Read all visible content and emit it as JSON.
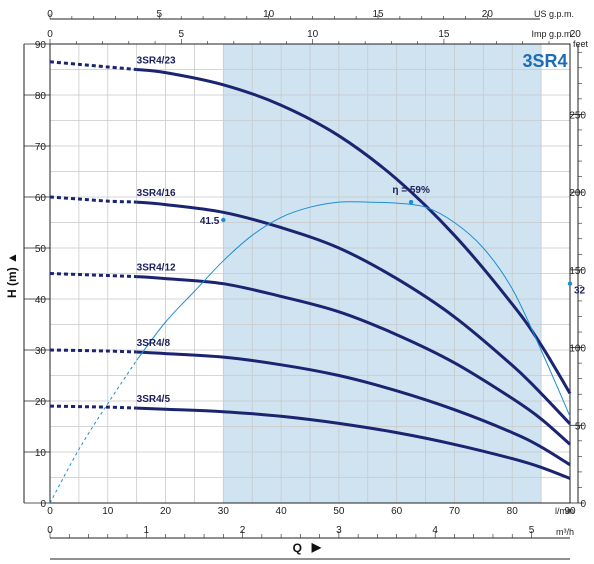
{
  "chart_data": {
    "type": "line",
    "title": "3SR4",
    "colors": {
      "head_curve": "#1b2470",
      "efficiency_curve": "#1c8fd0",
      "operating_band": "#cfe3f1",
      "title": "#1c6db5",
      "grid": "#c9c9c9"
    },
    "axes": {
      "y_left": {
        "label": "H (m)",
        "arrow": "▲",
        "range": [
          0,
          90
        ],
        "ticks": [
          "0",
          "10",
          "20",
          "30",
          "40",
          "50",
          "60",
          "70",
          "80",
          "90"
        ]
      },
      "y_right": {
        "label": "feet",
        "range": [
          0,
          295.3
        ],
        "ticks": [
          "0",
          "50",
          "100",
          "150",
          "200",
          "250"
        ]
      },
      "x_bottom_lmin": {
        "label": "l/min",
        "range": [
          0,
          90
        ],
        "ticks": [
          "0",
          "10",
          "20",
          "30",
          "40",
          "50",
          "60",
          "70",
          "80",
          "90"
        ]
      },
      "x_bottom_m3h": {
        "label": "m³/h",
        "range": [
          0,
          5.4
        ],
        "ticks": [
          "0",
          "1",
          "2",
          "3",
          "4",
          "5"
        ]
      },
      "x_top_usgpm": {
        "label": "US g.p.m.",
        "range": [
          0,
          23.78
        ],
        "ticks": [
          "0",
          "5",
          "10",
          "15",
          "20"
        ]
      },
      "x_top_impgpm": {
        "label": "Imp g.p.m.",
        "range": [
          0,
          19.8
        ],
        "ticks": [
          "0",
          "5",
          "10",
          "15",
          "20"
        ]
      },
      "x_title": "Q",
      "x_arrow": "▶"
    },
    "grid": true,
    "operating_range_lmin": [
      30,
      85
    ],
    "series": [
      {
        "name": "3SR4/23",
        "dashed_range": [
          0,
          15
        ],
        "x": [
          0,
          5,
          10,
          15,
          20,
          30,
          40,
          50,
          60,
          70,
          80,
          85,
          90
        ],
        "y": [
          86.5,
          86,
          85.5,
          85,
          84.4,
          82,
          78,
          72,
          63.5,
          52.5,
          39,
          31,
          21.5
        ]
      },
      {
        "name": "3SR4/16",
        "dashed_range": [
          0,
          15
        ],
        "x": [
          0,
          5,
          10,
          15,
          20,
          30,
          40,
          50,
          60,
          70,
          80,
          85,
          90
        ],
        "y": [
          60,
          59.6,
          59.2,
          59,
          58.5,
          57,
          54,
          50,
          44,
          36.5,
          27,
          21.5,
          15.5
        ]
      },
      {
        "name": "3SR4/12",
        "dashed_range": [
          0,
          15
        ],
        "x": [
          0,
          5,
          10,
          15,
          20,
          30,
          40,
          50,
          60,
          70,
          80,
          85,
          90
        ],
        "y": [
          45,
          44.8,
          44.6,
          44.4,
          44,
          43,
          40.5,
          37.5,
          33,
          27.5,
          20.5,
          16.5,
          11.5
        ]
      },
      {
        "name": "3SR4/8",
        "dashed_range": [
          0,
          15
        ],
        "x": [
          0,
          5,
          10,
          15,
          20,
          30,
          40,
          50,
          60,
          70,
          80,
          85,
          90
        ],
        "y": [
          30,
          29.9,
          29.8,
          29.6,
          29.3,
          28.6,
          27.1,
          25,
          22,
          18.3,
          13.8,
          11,
          7.5
        ]
      },
      {
        "name": "3SR4/5",
        "dashed_range": [
          0,
          15
        ],
        "x": [
          0,
          5,
          10,
          15,
          20,
          30,
          40,
          50,
          60,
          70,
          80,
          85,
          90
        ],
        "y": [
          19,
          18.9,
          18.8,
          18.6,
          18.4,
          17.9,
          17,
          15.6,
          13.8,
          11.5,
          8.7,
          7,
          4.8
        ]
      }
    ],
    "efficiency": {
      "name": "η",
      "dashed_range": [
        0,
        15
      ],
      "x": [
        0,
        5,
        10,
        15,
        20,
        25,
        30,
        35,
        40,
        45,
        50,
        55,
        60,
        65,
        70,
        75,
        80,
        85,
        90
      ],
      "y": [
        0,
        10.5,
        19.5,
        28,
        35.5,
        41.5,
        47.5,
        52.5,
        56,
        58,
        59,
        59,
        58.8,
        58,
        55,
        50,
        42,
        30,
        17
      ]
    },
    "annotations": [
      {
        "text": "η = 59%",
        "x": 62.5,
        "y": 59,
        "marker": true
      },
      {
        "text": "41.5",
        "x": 30,
        "y": 55.5,
        "marker": true
      },
      {
        "text": "32",
        "x": 90,
        "y": 43,
        "marker": true
      }
    ]
  }
}
